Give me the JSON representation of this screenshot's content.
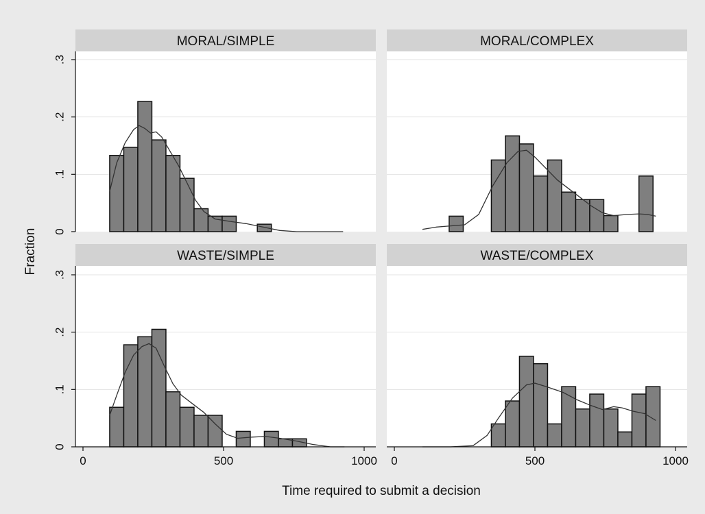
{
  "chart_data": {
    "type": "bar",
    "xlabel": "Time required to submit a decision",
    "ylabel": "Fraction",
    "xlim": [
      0,
      1000
    ],
    "ylim": [
      0,
      0.3
    ],
    "xticks": [
      0,
      500,
      1000
    ],
    "xtick_labels": [
      "0",
      "500",
      "1000"
    ],
    "yticks": [
      0,
      0.1,
      0.2,
      0.3
    ],
    "ytick_labels": [
      "0",
      ".1",
      ".2",
      ".3"
    ],
    "grid": true,
    "legend": "none",
    "bar_color": "#7f7f7f",
    "panels": [
      {
        "title": "MORAL/SIMPLE",
        "bins": [
          [
            95,
            145,
            0.133
          ],
          [
            145,
            195,
            0.147
          ],
          [
            195,
            245,
            0.227
          ],
          [
            245,
            295,
            0.16
          ],
          [
            295,
            345,
            0.133
          ],
          [
            345,
            395,
            0.093
          ],
          [
            395,
            445,
            0.04
          ],
          [
            445,
            495,
            0.027
          ],
          [
            495,
            545,
            0.027
          ],
          [
            620,
            670,
            0.013
          ]
        ],
        "kde": [
          [
            95,
            0.07
          ],
          [
            120,
            0.12
          ],
          [
            150,
            0.155
          ],
          [
            180,
            0.178
          ],
          [
            200,
            0.185
          ],
          [
            220,
            0.18
          ],
          [
            240,
            0.172
          ],
          [
            260,
            0.174
          ],
          [
            280,
            0.165
          ],
          [
            310,
            0.14
          ],
          [
            340,
            0.115
          ],
          [
            370,
            0.085
          ],
          [
            400,
            0.055
          ],
          [
            430,
            0.035
          ],
          [
            470,
            0.022
          ],
          [
            520,
            0.018
          ],
          [
            580,
            0.014
          ],
          [
            640,
            0.008
          ],
          [
            700,
            0.002
          ],
          [
            760,
            0.0
          ],
          [
            850,
            0.0
          ],
          [
            925,
            0.0
          ]
        ]
      },
      {
        "title": "MORAL/COMPLEX",
        "bins": [
          [
            195,
            245,
            0.027
          ],
          [
            345,
            395,
            0.125
          ],
          [
            395,
            445,
            0.167
          ],
          [
            445,
            495,
            0.153
          ],
          [
            495,
            545,
            0.097
          ],
          [
            545,
            595,
            0.125
          ],
          [
            595,
            645,
            0.069
          ],
          [
            645,
            695,
            0.056
          ],
          [
            695,
            745,
            0.056
          ],
          [
            745,
            795,
            0.028
          ],
          [
            870,
            920,
            0.097
          ]
        ],
        "kde": [
          [
            100,
            0.004
          ],
          [
            150,
            0.008
          ],
          [
            200,
            0.01
          ],
          [
            250,
            0.012
          ],
          [
            300,
            0.03
          ],
          [
            350,
            0.08
          ],
          [
            400,
            0.12
          ],
          [
            440,
            0.14
          ],
          [
            470,
            0.142
          ],
          [
            500,
            0.13
          ],
          [
            540,
            0.11
          ],
          [
            580,
            0.09
          ],
          [
            620,
            0.075
          ],
          [
            660,
            0.06
          ],
          [
            700,
            0.045
          ],
          [
            740,
            0.033
          ],
          [
            780,
            0.028
          ],
          [
            830,
            0.03
          ],
          [
            870,
            0.031
          ],
          [
            900,
            0.03
          ],
          [
            930,
            0.027
          ]
        ]
      },
      {
        "title": "WASTE/SIMPLE",
        "bins": [
          [
            95,
            145,
            0.069
          ],
          [
            145,
            195,
            0.178
          ],
          [
            195,
            245,
            0.192
          ],
          [
            245,
            295,
            0.205
          ],
          [
            295,
            345,
            0.096
          ],
          [
            345,
            395,
            0.069
          ],
          [
            395,
            445,
            0.055
          ],
          [
            445,
            495,
            0.055
          ],
          [
            545,
            595,
            0.027
          ],
          [
            645,
            695,
            0.027
          ],
          [
            695,
            745,
            0.014
          ],
          [
            745,
            795,
            0.014
          ]
        ],
        "kde": [
          [
            95,
            0.055
          ],
          [
            120,
            0.09
          ],
          [
            150,
            0.13
          ],
          [
            180,
            0.16
          ],
          [
            210,
            0.175
          ],
          [
            235,
            0.18
          ],
          [
            260,
            0.172
          ],
          [
            290,
            0.14
          ],
          [
            320,
            0.11
          ],
          [
            350,
            0.09
          ],
          [
            390,
            0.075
          ],
          [
            430,
            0.06
          ],
          [
            470,
            0.04
          ],
          [
            510,
            0.022
          ],
          [
            550,
            0.015
          ],
          [
            600,
            0.017
          ],
          [
            650,
            0.018
          ],
          [
            700,
            0.015
          ],
          [
            760,
            0.01
          ],
          [
            820,
            0.004
          ],
          [
            880,
            0.0
          ],
          [
            930,
            0.0
          ]
        ]
      },
      {
        "title": "WASTE/COMPLEX",
        "bins": [
          [
            345,
            395,
            0.04
          ],
          [
            395,
            445,
            0.08
          ],
          [
            445,
            495,
            0.158
          ],
          [
            495,
            545,
            0.145
          ],
          [
            545,
            595,
            0.04
          ],
          [
            595,
            645,
            0.105
          ],
          [
            645,
            695,
            0.066
          ],
          [
            695,
            745,
            0.092
          ],
          [
            745,
            795,
            0.066
          ],
          [
            795,
            845,
            0.026
          ],
          [
            845,
            895,
            0.092
          ],
          [
            895,
            945,
            0.105
          ]
        ],
        "kde": [
          [
            100,
            0.0
          ],
          [
            200,
            0.0
          ],
          [
            280,
            0.002
          ],
          [
            330,
            0.02
          ],
          [
            370,
            0.05
          ],
          [
            420,
            0.085
          ],
          [
            470,
            0.108
          ],
          [
            500,
            0.111
          ],
          [
            540,
            0.105
          ],
          [
            600,
            0.095
          ],
          [
            650,
            0.082
          ],
          [
            700,
            0.072
          ],
          [
            740,
            0.065
          ],
          [
            780,
            0.07
          ],
          [
            810,
            0.068
          ],
          [
            850,
            0.062
          ],
          [
            890,
            0.058
          ],
          [
            930,
            0.046
          ]
        ]
      }
    ]
  }
}
